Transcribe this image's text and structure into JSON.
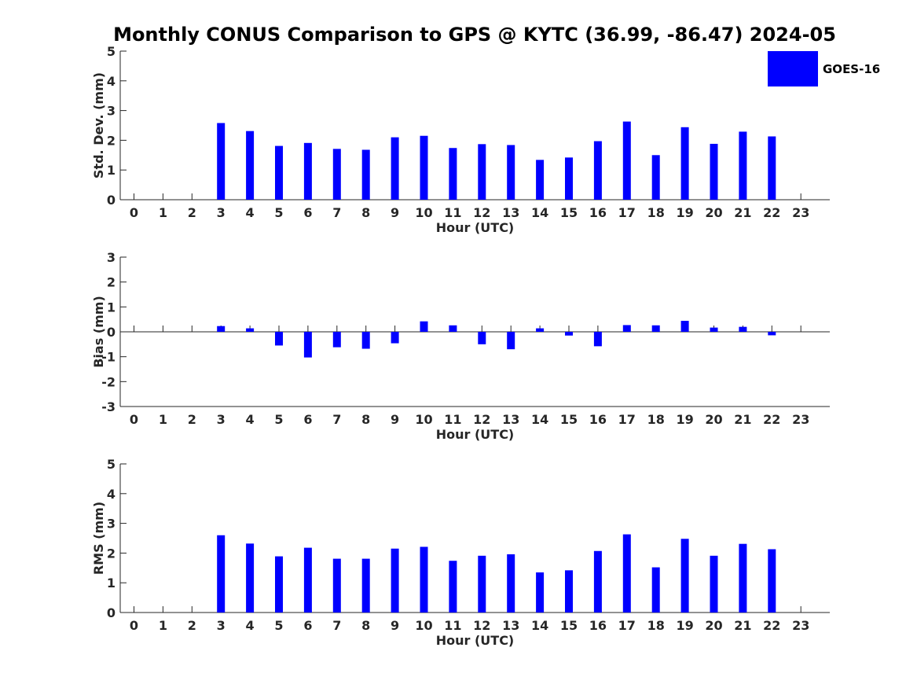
{
  "title": "Monthly CONUS Comparison to GPS @ KYTC (36.99, -86.47) 2024-05",
  "legend": {
    "label": "GOES-16",
    "color": "#0000ff",
    "placement": "top-right"
  },
  "bar_color": "#0000ff",
  "chart_data": [
    {
      "type": "bar",
      "categories": [
        "0",
        "1",
        "2",
        "3",
        "4",
        "5",
        "6",
        "7",
        "8",
        "9",
        "10",
        "11",
        "12",
        "13",
        "14",
        "15",
        "16",
        "17",
        "18",
        "19",
        "20",
        "21",
        "22",
        "23"
      ],
      "values": [
        null,
        null,
        null,
        2.58,
        2.31,
        1.81,
        1.91,
        1.71,
        1.68,
        2.1,
        2.15,
        1.74,
        1.87,
        1.84,
        1.34,
        1.42,
        1.97,
        2.63,
        1.5,
        2.44,
        1.88,
        2.29,
        2.13,
        null
      ],
      "xlabel": "Hour (UTC)",
      "ylabel": "Std. Dev. (mm)",
      "ylim": [
        0,
        5
      ],
      "yticks": [
        "0",
        "1",
        "2",
        "3",
        "4",
        "5"
      ],
      "grid": false
    },
    {
      "type": "bar",
      "categories": [
        "0",
        "1",
        "2",
        "3",
        "4",
        "5",
        "6",
        "7",
        "8",
        "9",
        "10",
        "11",
        "12",
        "13",
        "14",
        "15",
        "16",
        "17",
        "18",
        "19",
        "20",
        "21",
        "22",
        "23"
      ],
      "values": [
        null,
        null,
        null,
        0.23,
        0.14,
        -0.55,
        -1.03,
        -0.62,
        -0.68,
        -0.46,
        0.42,
        0.26,
        -0.5,
        -0.7,
        0.14,
        -0.15,
        -0.58,
        0.27,
        0.26,
        0.44,
        0.17,
        0.2,
        -0.14,
        null
      ],
      "xlabel": "Hour (UTC)",
      "ylabel": "Bias (mm)",
      "ylim": [
        -3,
        3
      ],
      "yticks": [
        "-3",
        "-2",
        "-1",
        "0",
        "1",
        "2",
        "3"
      ],
      "grid": false
    },
    {
      "type": "bar",
      "categories": [
        "0",
        "1",
        "2",
        "3",
        "4",
        "5",
        "6",
        "7",
        "8",
        "9",
        "10",
        "11",
        "12",
        "13",
        "14",
        "15",
        "16",
        "17",
        "18",
        "19",
        "20",
        "21",
        "22",
        "23"
      ],
      "values": [
        null,
        null,
        null,
        2.6,
        2.32,
        1.89,
        2.18,
        1.81,
        1.81,
        2.15,
        2.21,
        1.74,
        1.91,
        1.96,
        1.35,
        1.42,
        2.07,
        2.63,
        1.52,
        2.48,
        1.91,
        2.31,
        2.13,
        null
      ],
      "xlabel": "Hour (UTC)",
      "ylabel": "RMS (mm)",
      "ylim": [
        0,
        5
      ],
      "yticks": [
        "0",
        "1",
        "2",
        "3",
        "4",
        "5"
      ],
      "grid": false
    }
  ]
}
